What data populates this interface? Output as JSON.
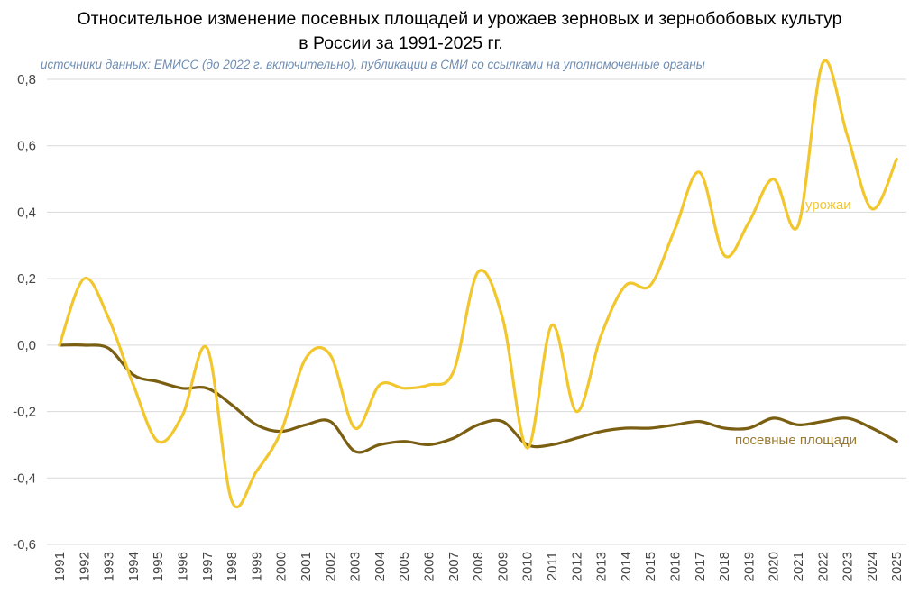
{
  "title_line1": "Относительное изменение посевных площадей и урожаев зерновых и зернобобовых культур",
  "title_line2": "в России за 1991-2025 гг.",
  "source": "источники данных: ЕМИСС (до 2022 г. включительно), публикации в СМИ со ссылками на уполномоченные органы",
  "colors": {
    "yield": "#f2c62d",
    "area": "#7a5f12",
    "area_label": "#9a7a33",
    "grid": "#d9d9d9"
  },
  "chart_data": {
    "type": "line",
    "title": "Относительное изменение посевных площадей и урожаев зерновых и зернобобовых культур в России за 1991-2025 гг.",
    "x": [
      "1991",
      "1992",
      "1993",
      "1994",
      "1995",
      "1996",
      "1997",
      "1998",
      "1999",
      "2000",
      "2001",
      "2002",
      "2003",
      "2004",
      "2005",
      "2006",
      "2007",
      "2008",
      "2009",
      "2010",
      "2011",
      "2012",
      "2013",
      "2014",
      "2015",
      "2016",
      "2017",
      "2018",
      "2019",
      "2020",
      "2021",
      "2022",
      "2023",
      "2024",
      "2025"
    ],
    "ylim": [
      -0.6,
      0.8
    ],
    "yticks": [
      -0.6,
      -0.4,
      -0.2,
      0.0,
      0.2,
      0.4,
      0.6,
      0.8
    ],
    "ytick_labels": [
      "-0,6",
      "-0,4",
      "-0,2",
      "0,0",
      "0,2",
      "0,4",
      "0,6",
      "0,8"
    ],
    "grid": true,
    "series": [
      {
        "name": "урожаи",
        "color_key": "yield",
        "values": [
          0.0,
          0.2,
          0.08,
          -0.12,
          -0.29,
          -0.21,
          -0.01,
          -0.47,
          -0.38,
          -0.26,
          -0.04,
          -0.03,
          -0.25,
          -0.12,
          -0.13,
          -0.12,
          -0.08,
          0.22,
          0.08,
          -0.31,
          0.06,
          -0.2,
          0.03,
          0.18,
          0.18,
          0.35,
          0.52,
          0.27,
          0.37,
          0.5,
          0.36,
          0.85,
          0.63,
          0.41,
          0.56
        ]
      },
      {
        "name": "посевные площади",
        "color_key": "area",
        "values": [
          0.0,
          0.0,
          -0.01,
          -0.09,
          -0.11,
          -0.13,
          -0.13,
          -0.18,
          -0.24,
          -0.26,
          -0.24,
          -0.23,
          -0.32,
          -0.3,
          -0.29,
          -0.3,
          -0.28,
          -0.24,
          -0.23,
          -0.3,
          -0.3,
          -0.28,
          -0.26,
          -0.25,
          -0.25,
          -0.24,
          -0.23,
          -0.25,
          -0.25,
          -0.22,
          -0.24,
          -0.23,
          -0.22,
          -0.25,
          -0.29
        ]
      }
    ]
  }
}
